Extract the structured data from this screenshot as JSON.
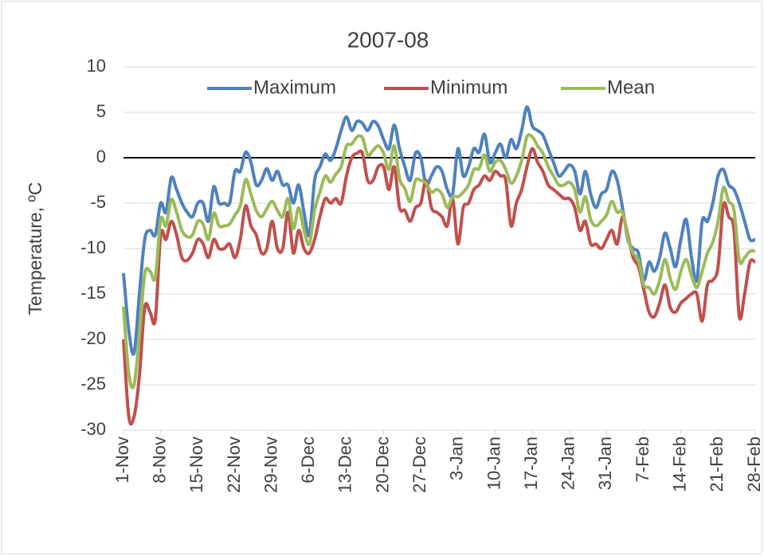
{
  "chart_data": {
    "type": "line",
    "title": "2007-08",
    "y_label": "Temperature, ºC",
    "categories": [
      "1-Nov",
      null,
      null,
      null,
      null,
      null,
      null,
      "8-Nov",
      null,
      null,
      null,
      null,
      null,
      null,
      "15-Nov",
      null,
      null,
      null,
      null,
      null,
      null,
      "22-Nov",
      null,
      null,
      null,
      null,
      null,
      null,
      "29-Nov",
      null,
      null,
      null,
      null,
      null,
      null,
      "6-Dec",
      null,
      null,
      null,
      null,
      null,
      null,
      "13-Dec",
      null,
      null,
      null,
      null,
      null,
      null,
      "20-Dec",
      null,
      null,
      null,
      null,
      null,
      null,
      "27-Dec",
      null,
      null,
      null,
      null,
      null,
      null,
      "3-Jan",
      null,
      null,
      null,
      null,
      null,
      null,
      "10-Jan",
      null,
      null,
      null,
      null,
      null,
      null,
      "17-Jan",
      null,
      null,
      null,
      null,
      null,
      null,
      "24-Jan",
      null,
      null,
      null,
      null,
      null,
      null,
      "31-Jan",
      null,
      null,
      null,
      null,
      null,
      null,
      "7-Feb",
      null,
      null,
      null,
      null,
      null,
      null,
      "14-Feb",
      null,
      null,
      null,
      null,
      null,
      null,
      "21-Feb",
      null,
      null,
      null,
      null,
      null,
      null,
      "28-Feb"
    ],
    "series": [
      {
        "name": "Maximum",
        "color": "#4f81bd",
        "values": [
          -12.7,
          -19,
          -21.5,
          -15,
          -9,
          -8,
          -8.5,
          -5,
          -6,
          -2.2,
          -3.5,
          -5,
          -6,
          -6.5,
          -5,
          -5,
          -7,
          -3.2,
          -5,
          -5,
          -5,
          -1.5,
          -1.5,
          0.6,
          -0.5,
          -3,
          -2.5,
          -1.2,
          -2.5,
          -1.5,
          -3,
          -3,
          -5,
          -3,
          -6,
          -8.5,
          -2.5,
          -1,
          0.4,
          -0.3,
          1,
          3,
          4.5,
          3,
          4,
          3.8,
          3,
          4,
          3.5,
          2,
          1,
          3.6,
          1,
          -1,
          -2.5,
          0.5,
          0,
          -3,
          -2,
          -1,
          -1.5,
          -3.5,
          -4,
          1,
          -2,
          -1,
          1,
          0.6,
          2.6,
          -0.5,
          0.5,
          1.5,
          0,
          2,
          1,
          3,
          5.6,
          3.5,
          3,
          2.5,
          1,
          -0.5,
          -2,
          -1.5,
          -0.8,
          -1.5,
          -4,
          -1.5,
          -4,
          -5.5,
          -4,
          -3.5,
          -1.5,
          -2.5,
          -5.5,
          -9,
          -10,
          -10.5,
          -13.5,
          -11.5,
          -12.5,
          -11,
          -8.3,
          -10,
          -12,
          -9,
          -6.8,
          -11,
          -13.5,
          -7,
          -7,
          -5,
          -2,
          -1.3,
          -3,
          -3.5,
          -5,
          -7,
          -9,
          -9
        ]
      },
      {
        "name": "Minimum",
        "color": "#c0504d",
        "values": [
          -20,
          -28.5,
          -28.5,
          -24,
          -16.5,
          -17,
          -17.8,
          -8.5,
          -9,
          -7,
          -8.5,
          -11,
          -11.3,
          -10.5,
          -9,
          -9.5,
          -11,
          -9,
          -10,
          -10,
          -9.5,
          -11,
          -9,
          -5.3,
          -7.5,
          -8.5,
          -10.5,
          -10,
          -7,
          -10,
          -10,
          -6,
          -10.5,
          -8,
          -10,
          -10.5,
          -9,
          -6.5,
          -4.5,
          -5,
          -4.5,
          -5,
          -2,
          0,
          0.5,
          0.5,
          -2.5,
          -2.5,
          -1,
          -1,
          -3.5,
          -1,
          -5.5,
          -5.8,
          -7,
          -5.5,
          -5,
          -2.5,
          -5.5,
          -6,
          -6.5,
          -7.5,
          -4.5,
          -9.5,
          -5.5,
          -5,
          -3.5,
          -3,
          -2,
          -2.5,
          -1.5,
          -2,
          -2.5,
          -7.5,
          -5,
          -3.5,
          -1,
          1,
          -0.5,
          -1.5,
          -3,
          -3.5,
          -4,
          -4.5,
          -4.5,
          -5.5,
          -8,
          -7,
          -9.5,
          -9.5,
          -10,
          -9,
          -8,
          -9.5,
          -6.5,
          -8.5,
          -11,
          -12,
          -14.5,
          -17,
          -17.5,
          -16,
          -14,
          -16.5,
          -17,
          -16,
          -15.5,
          -15,
          -15,
          -18,
          -14,
          -13.5,
          -12,
          -5.2,
          -6.5,
          -8,
          -17.5,
          -15,
          -11.5,
          -11.5
        ]
      },
      {
        "name": "Mean",
        "color": "#9bbb59",
        "values": [
          -16.4,
          -23.8,
          -25,
          -19.5,
          -12.8,
          -12.5,
          -13.2,
          -6.8,
          -7.5,
          -4.6,
          -6,
          -8,
          -8.7,
          -8.5,
          -7,
          -7.3,
          -9,
          -6.1,
          -7.5,
          -7.5,
          -7.3,
          -6.3,
          -5.3,
          -2.4,
          -4,
          -5.8,
          -6.5,
          -5.6,
          -4.8,
          -5.8,
          -6.5,
          -4.5,
          -7.8,
          -5.5,
          -8,
          -9.5,
          -5.8,
          -3.8,
          -2,
          -2.7,
          -1.8,
          -1,
          1.3,
          1.5,
          2.3,
          2.2,
          0.3,
          0.8,
          1.3,
          0.5,
          -1.3,
          1.3,
          -2.3,
          -3.4,
          -4.8,
          -2.5,
          -2.5,
          -2.8,
          -3.8,
          -3.5,
          -4,
          -5.5,
          -4.3,
          -4.3,
          -3.8,
          -3,
          -1.3,
          -1.2,
          0.3,
          -1.5,
          -0.5,
          -0.3,
          -1.3,
          -2.8,
          -2,
          -0.3,
          2.3,
          2.3,
          1.3,
          0.5,
          -1,
          -2,
          -3,
          -3,
          -2.7,
          -3.5,
          -6,
          -4.3,
          -6.8,
          -7.5,
          -7,
          -6.3,
          -4.8,
          -6,
          -6,
          -8.8,
          -10.5,
          -11.3,
          -14,
          -14.3,
          -15,
          -13.5,
          -11.2,
          -13.3,
          -14.5,
          -12.5,
          -11.2,
          -13,
          -14.3,
          -12.5,
          -10.5,
          -9.3,
          -7,
          -3.3,
          -4.8,
          -5.8,
          -11.3,
          -11,
          -10.3,
          -10.3
        ]
      }
    ],
    "ylim": [
      -30,
      10
    ],
    "yticks": [
      -30,
      -25,
      -20,
      -15,
      -10,
      -5,
      0,
      5,
      10
    ],
    "grid": true,
    "legend": "top"
  }
}
